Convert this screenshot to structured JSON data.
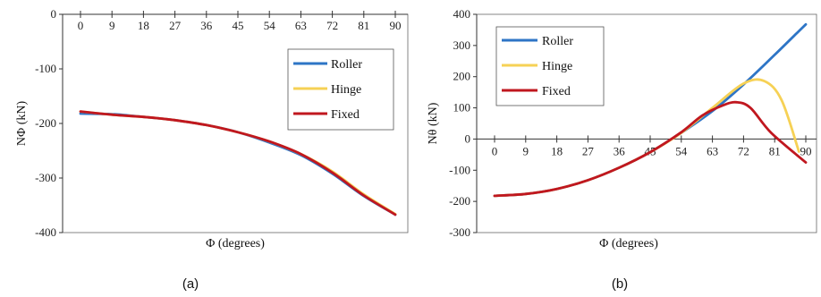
{
  "chart_data": [
    {
      "type": "line",
      "caption": "(a)",
      "xlabel": "Φ (degrees)",
      "ylabel": "NΦ (kN)",
      "xlim": [
        0,
        90
      ],
      "ylim": [
        -400,
        0
      ],
      "xticks": [
        0,
        9,
        18,
        27,
        36,
        45,
        54,
        63,
        72,
        81,
        90
      ],
      "yticks": [
        0,
        -100,
        -200,
        -300,
        -400
      ],
      "x_axis_position": "top",
      "grid": false,
      "legend_position": "right",
      "series": [
        {
          "name": "Roller",
          "color": "#2e75c6",
          "x": [
            0,
            9,
            18,
            27,
            36,
            45,
            54,
            63,
            72,
            81,
            90
          ],
          "y": [
            -182,
            -183,
            -188,
            -194,
            -203,
            -216,
            -235,
            -258,
            -292,
            -333,
            -367
          ]
        },
        {
          "name": "Hinge",
          "color": "#f6d155",
          "x": [
            0,
            9,
            18,
            27,
            36,
            45,
            54,
            63,
            72,
            81,
            90
          ],
          "y": [
            -178,
            -184,
            -188,
            -194,
            -203,
            -216,
            -233,
            -256,
            -288,
            -330,
            -366
          ]
        },
        {
          "name": "Fixed",
          "color": "#c0171f",
          "x": [
            0,
            9,
            18,
            27,
            36,
            45,
            54,
            63,
            72,
            81,
            90
          ],
          "y": [
            -178,
            -184,
            -188,
            -194,
            -203,
            -216,
            -233,
            -256,
            -290,
            -332,
            -367
          ]
        }
      ]
    },
    {
      "type": "line",
      "caption": "(b)",
      "xlabel": "Φ (degrees)",
      "ylabel": "Nθ (kN)",
      "xlim": [
        0,
        90
      ],
      "ylim": [
        -300,
        400
      ],
      "xticks": [
        0,
        9,
        18,
        27,
        36,
        45,
        54,
        63,
        72,
        81,
        90
      ],
      "yticks": [
        400,
        300,
        200,
        100,
        0,
        -100,
        -200,
        -300
      ],
      "x_axis_position": "zero",
      "grid": false,
      "legend_position": "top-left",
      "series": [
        {
          "name": "Roller",
          "color": "#2e75c6",
          "x": [
            0,
            9,
            18,
            27,
            36,
            45,
            54,
            63,
            72,
            81,
            90
          ],
          "y": [
            -182,
            -176,
            -160,
            -132,
            -92,
            -42,
            20,
            90,
            175,
            270,
            368
          ]
        },
        {
          "name": "Hinge",
          "color": "#f6d155",
          "x": [
            0,
            9,
            18,
            27,
            36,
            45,
            54,
            63,
            72,
            78,
            83,
            88
          ],
          "y": [
            -182,
            -176,
            -160,
            -132,
            -92,
            -42,
            20,
            100,
            178,
            186,
            125,
            -40
          ]
        },
        {
          "name": "Fixed",
          "color": "#c0171f",
          "x": [
            0,
            9,
            18,
            27,
            36,
            45,
            54,
            60,
            66,
            70,
            74,
            80,
            90
          ],
          "y": [
            -182,
            -176,
            -160,
            -132,
            -92,
            -42,
            22,
            75,
            108,
            118,
            100,
            20,
            -75
          ]
        }
      ]
    }
  ]
}
